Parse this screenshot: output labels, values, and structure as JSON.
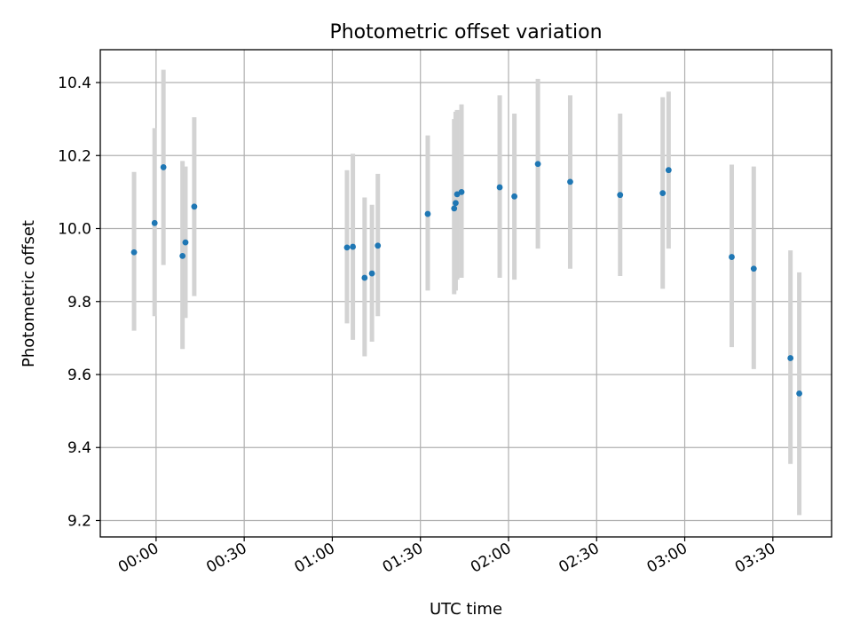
{
  "chart_data": {
    "type": "scatter",
    "title": "Photometric offset variation",
    "xlabel": "UTC time",
    "ylabel": "Photometric offset",
    "x_tick_labels": [
      "00:00",
      "00:30",
      "01:00",
      "01:30",
      "02:00",
      "02:30",
      "03:00",
      "03:30"
    ],
    "x_tick_minutes": [
      0,
      30,
      60,
      90,
      120,
      150,
      180,
      210
    ],
    "y_tick_labels": [
      "9.2",
      "9.4",
      "9.6",
      "9.8",
      "10.0",
      "10.2",
      "10.4"
    ],
    "y_ticks": [
      9.2,
      9.4,
      9.6,
      9.8,
      10.0,
      10.2,
      10.4
    ],
    "xlim_minutes": [
      -19,
      230
    ],
    "ylim": [
      9.155,
      10.49
    ],
    "grid": true,
    "colors": {
      "point": "#1f77b4",
      "error_bar": "#d3d3d3"
    },
    "series": [
      {
        "points": [
          {
            "t": -7.5,
            "y": 9.935,
            "lo": 9.72,
            "hi": 10.155
          },
          {
            "t": -0.5,
            "y": 10.015,
            "lo": 9.76,
            "hi": 10.275
          },
          {
            "t": 2.5,
            "y": 10.168,
            "lo": 9.9,
            "hi": 10.435
          },
          {
            "t": 9.0,
            "y": 9.925,
            "lo": 9.67,
            "hi": 10.185
          },
          {
            "t": 10.0,
            "y": 9.962,
            "lo": 9.755,
            "hi": 10.17
          },
          {
            "t": 13.0,
            "y": 10.06,
            "lo": 9.815,
            "hi": 10.305
          },
          {
            "t": 65.0,
            "y": 9.948,
            "lo": 9.74,
            "hi": 10.16
          },
          {
            "t": 67.0,
            "y": 9.95,
            "lo": 9.695,
            "hi": 10.205
          },
          {
            "t": 71.0,
            "y": 9.865,
            "lo": 9.65,
            "hi": 10.085
          },
          {
            "t": 73.5,
            "y": 9.877,
            "lo": 9.69,
            "hi": 10.065
          },
          {
            "t": 75.5,
            "y": 9.953,
            "lo": 9.76,
            "hi": 10.15
          },
          {
            "t": 92.5,
            "y": 10.04,
            "lo": 9.83,
            "hi": 10.255
          },
          {
            "t": 101.5,
            "y": 10.055,
            "lo": 9.82,
            "hi": 10.3
          },
          {
            "t": 102.0,
            "y": 10.07,
            "lo": 9.83,
            "hi": 10.32
          },
          {
            "t": 102.5,
            "y": 10.094,
            "lo": 9.86,
            "hi": 10.325
          },
          {
            "t": 104.0,
            "y": 10.1,
            "lo": 9.865,
            "hi": 10.34
          },
          {
            "t": 117.0,
            "y": 10.113,
            "lo": 9.865,
            "hi": 10.365
          },
          {
            "t": 122.0,
            "y": 10.088,
            "lo": 9.86,
            "hi": 10.315
          },
          {
            "t": 130.0,
            "y": 10.177,
            "lo": 9.945,
            "hi": 10.41
          },
          {
            "t": 141.0,
            "y": 10.128,
            "lo": 9.89,
            "hi": 10.365
          },
          {
            "t": 158.0,
            "y": 10.092,
            "lo": 9.87,
            "hi": 10.315
          },
          {
            "t": 172.5,
            "y": 10.097,
            "lo": 9.835,
            "hi": 10.36
          },
          {
            "t": 174.5,
            "y": 10.16,
            "lo": 9.945,
            "hi": 10.375
          },
          {
            "t": 196.0,
            "y": 9.922,
            "lo": 9.675,
            "hi": 10.175
          },
          {
            "t": 203.5,
            "y": 9.89,
            "lo": 9.615,
            "hi": 10.17
          },
          {
            "t": 216.0,
            "y": 9.645,
            "lo": 9.355,
            "hi": 9.94
          },
          {
            "t": 219.0,
            "y": 9.548,
            "lo": 9.215,
            "hi": 9.88
          }
        ]
      }
    ]
  }
}
